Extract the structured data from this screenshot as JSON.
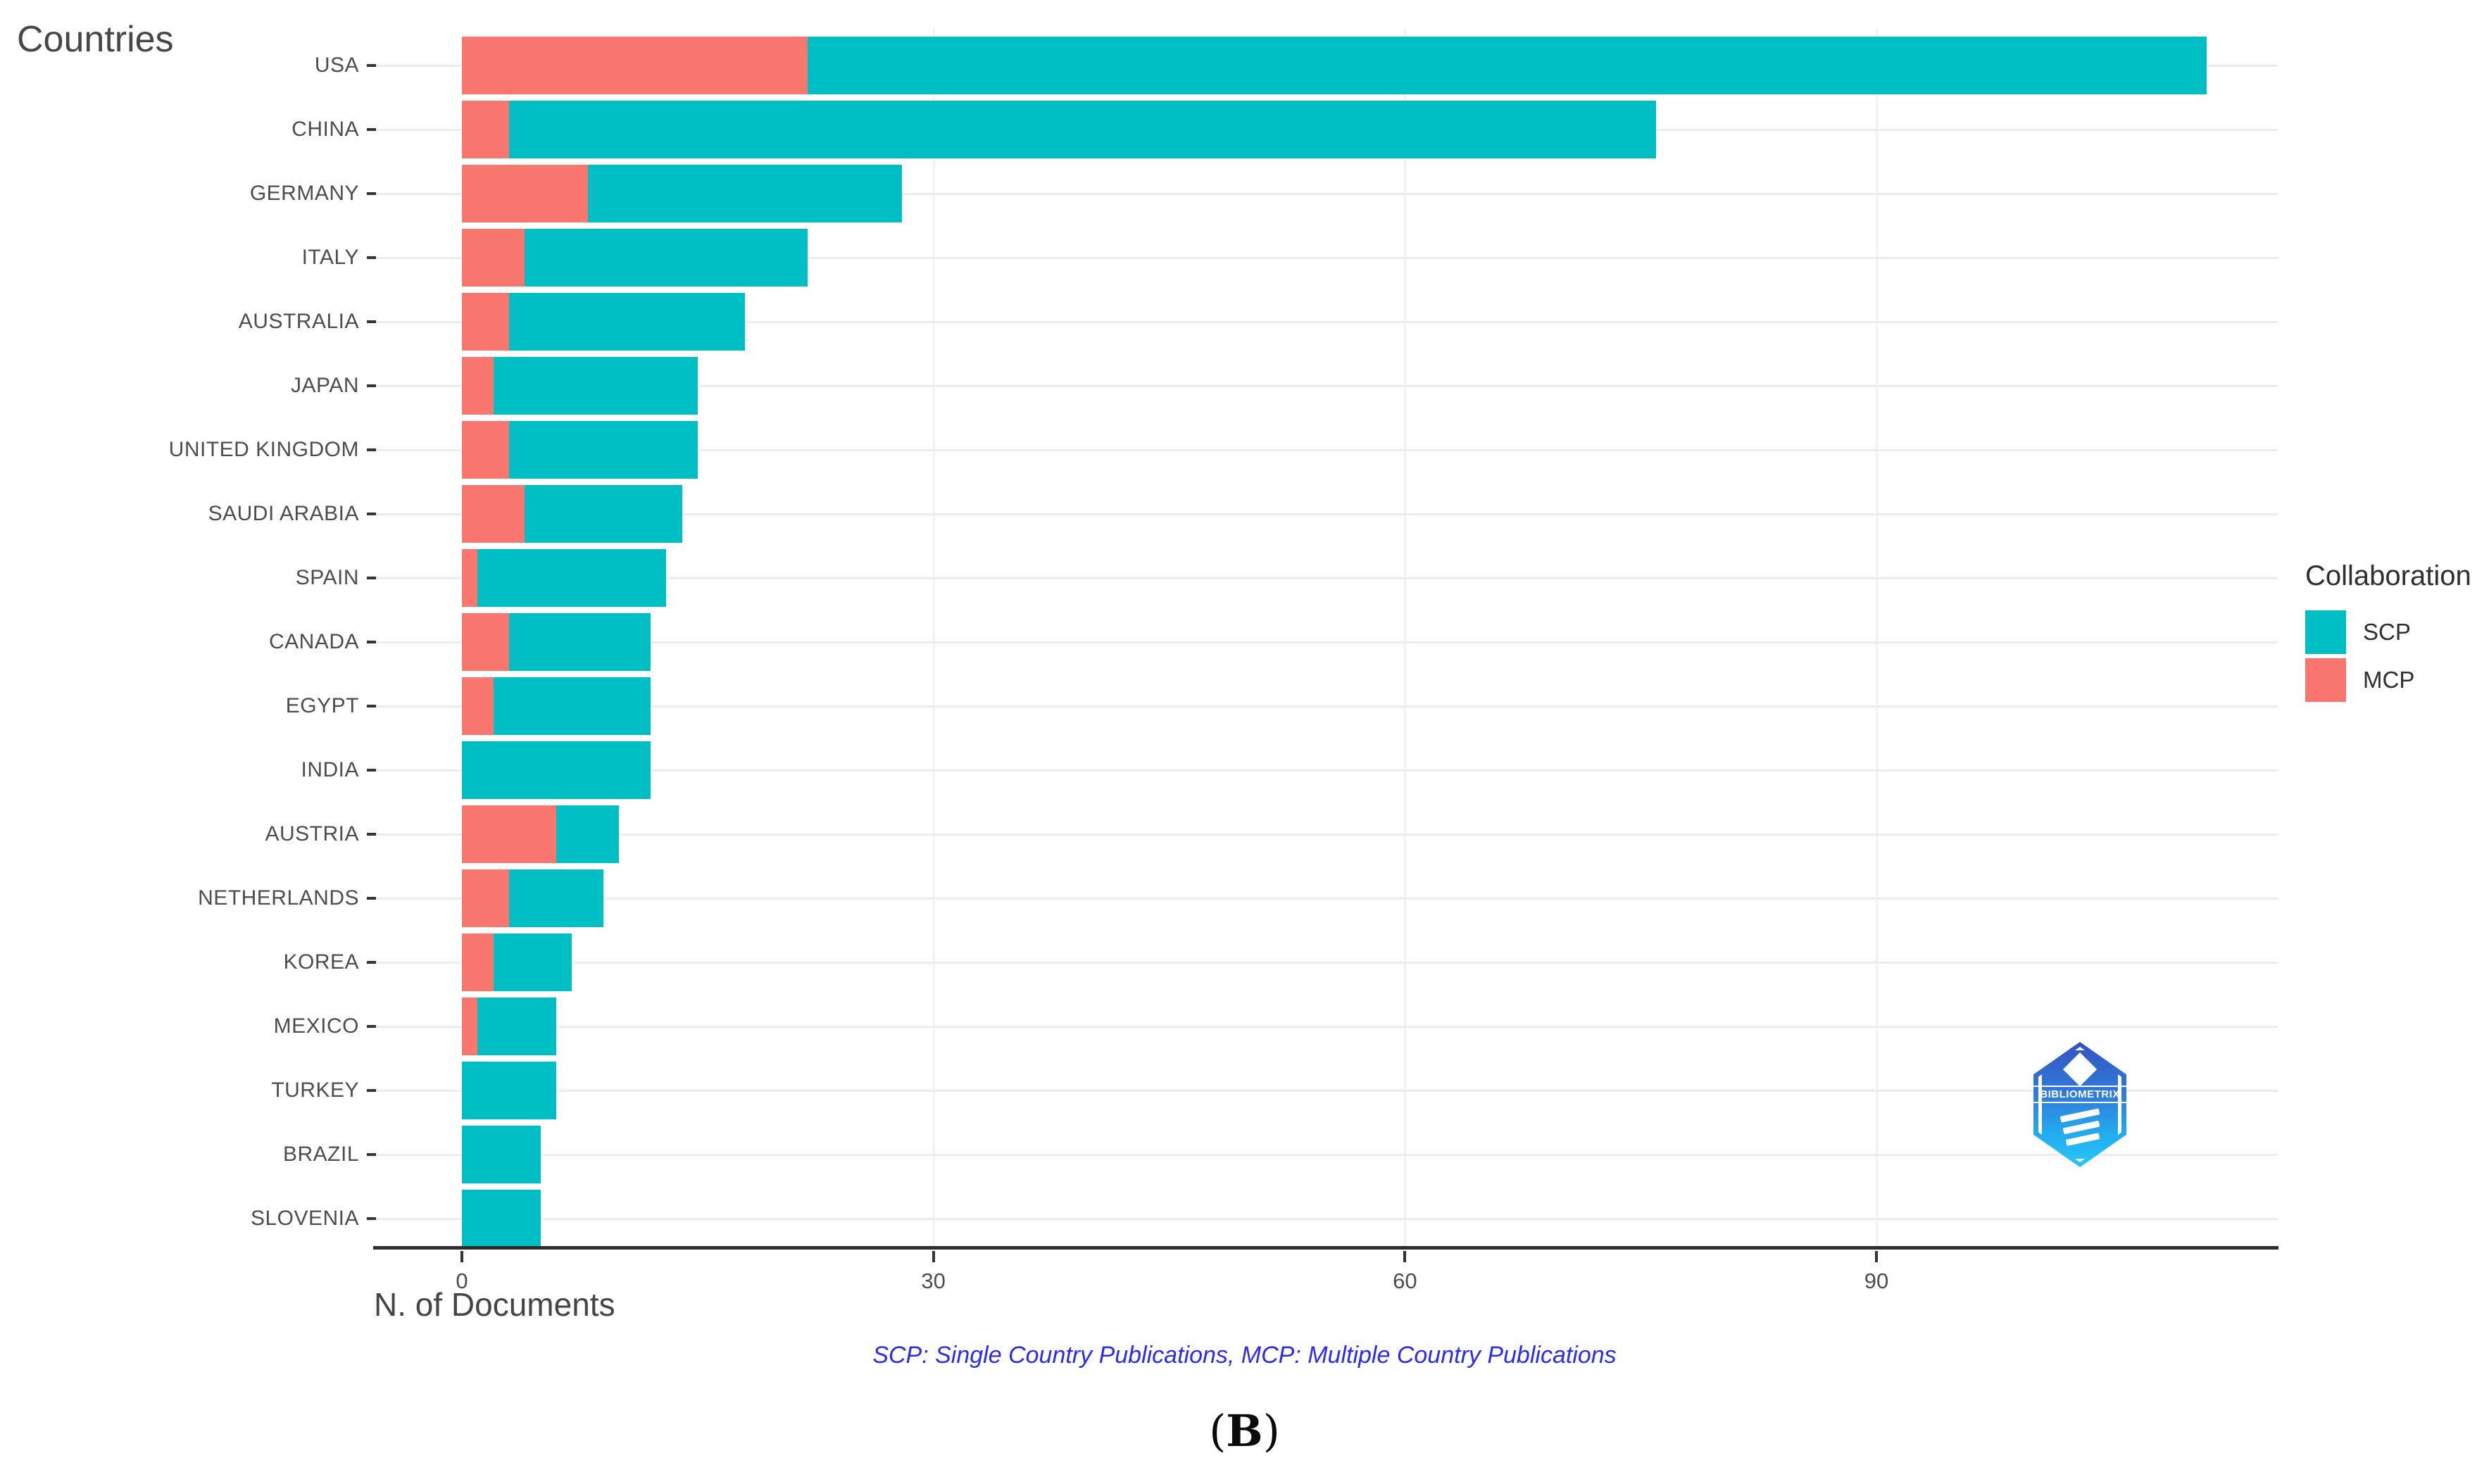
{
  "title": "Countries",
  "x_axis_title": "N. of Documents",
  "annotation": "SCP: Single Country Publications, MCP: Multiple Country Publications",
  "caption": {
    "open": "(",
    "letter": "B",
    "close": ")"
  },
  "legend": {
    "title": "Collaboration",
    "items": [
      {
        "label": "SCP",
        "color": "#00BFC4"
      },
      {
        "label": "MCP",
        "color": "#F8766D"
      }
    ]
  },
  "logo": {
    "text": "BIBLIOMETRIX"
  },
  "colors": {
    "scp": "#00BFC4",
    "mcp": "#F8766D",
    "grid": "#ececec",
    "axis_line": "#2e2e2e",
    "label_gray": "#4d4d4d",
    "annotation_blue": "#2b2bf0"
  },
  "chart_data": {
    "type": "bar",
    "orientation": "horizontal",
    "stacked": true,
    "title": "Countries",
    "xlabel": "N. of Documents",
    "ylabel": "",
    "legend_position": "right",
    "grid": true,
    "xlim": [
      0,
      116
    ],
    "x_ticks": [
      0,
      30,
      60,
      90
    ],
    "categories": [
      "USA",
      "CHINA",
      "GERMANY",
      "ITALY",
      "AUSTRALIA",
      "JAPAN",
      "UNITED KINGDOM",
      "SAUDI ARABIA",
      "SPAIN",
      "CANADA",
      "EGYPT",
      "INDIA",
      "AUSTRIA",
      "NETHERLANDS",
      "KOREA",
      "MEXICO",
      "TURKEY",
      "BRAZIL",
      "SLOVENIA"
    ],
    "series": [
      {
        "name": "MCP",
        "color": "#F8766D",
        "values": [
          22,
          3,
          8,
          4,
          3,
          2,
          3,
          4,
          1,
          3,
          2,
          0,
          6,
          3,
          2,
          1,
          0,
          0,
          0
        ]
      },
      {
        "name": "SCP",
        "color": "#00BFC4",
        "values": [
          89,
          73,
          20,
          18,
          15,
          13,
          12,
          10,
          12,
          9,
          10,
          12,
          4,
          6,
          5,
          5,
          6,
          5,
          5
        ]
      }
    ],
    "totals": [
      111,
      76,
      28,
      22,
      18,
      15,
      15,
      14,
      13,
      12,
      12,
      12,
      10,
      9,
      7,
      6,
      6,
      5,
      5
    ]
  }
}
